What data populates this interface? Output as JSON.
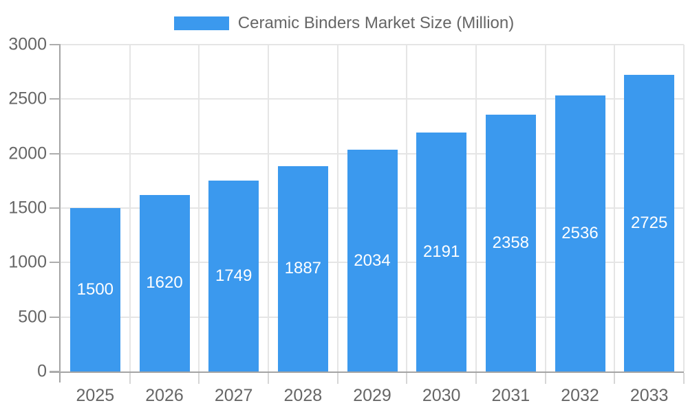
{
  "legend": {
    "label": "Ceramic Binders Market Size (Million)"
  },
  "chart_data": {
    "type": "bar",
    "title": "",
    "categories": [
      "2025",
      "2026",
      "2027",
      "2028",
      "2029",
      "2030",
      "2031",
      "2032",
      "2033"
    ],
    "series": [
      {
        "name": "Ceramic Binders Market Size (Million)",
        "values": [
          1500,
          1620,
          1749,
          1887,
          2034,
          2191,
          2358,
          2536,
          2725
        ]
      }
    ],
    "xlabel": "",
    "ylabel": "",
    "ylim": [
      0,
      3000
    ],
    "yticks": [
      0,
      500,
      1000,
      1500,
      2000,
      2500,
      3000
    ],
    "grid": true,
    "legend_position": "top",
    "value_label_position": "inside-center",
    "colors": {
      "bar": "#3B99EE",
      "bar_label": "#FFFFFF",
      "grid": "#E5E5E5",
      "axis": "#A3A3A3",
      "x_tick": "#D6D6D6",
      "y_tick": "#ADADAD",
      "text": "#666666",
      "background": "#FFFFFF"
    }
  }
}
